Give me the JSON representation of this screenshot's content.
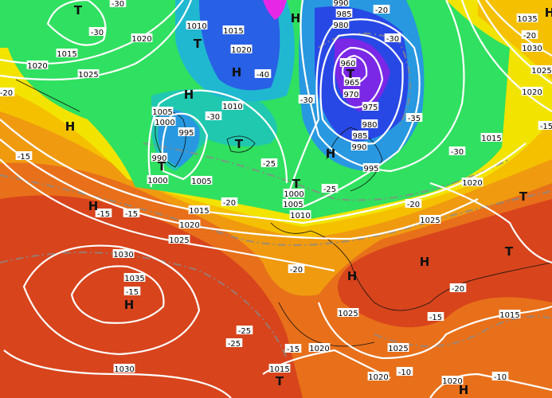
{
  "map": {
    "colors": {
      "deep_red": "#c8321e",
      "red_orange": "#e0561c",
      "orange": "#f08a10",
      "amber": "#f5b400",
      "yellow": "#f5e600",
      "green": "#2ee05a",
      "teal": "#1ac8b4",
      "cyan": "#28a0e6",
      "blue": "#2848e6",
      "purple": "#7a28e6",
      "magenta": "#e628e6",
      "isobar": "#ffffff",
      "isotherm": "#888888"
    },
    "pressure_labels": [
      "1020",
      "1015",
      "1020",
      "1025",
      "1010",
      "1015",
      "1020",
      "990",
      "985",
      "980",
      "960",
      "965",
      "970",
      "975",
      "980",
      "985",
      "990",
      "995",
      "1005",
      "1000",
      "995",
      "990",
      "1000",
      "1005",
      "1010",
      "1015",
      "1020",
      "1025",
      "1030",
      "1035",
      "1030",
      "1000",
      "1005",
      "1010",
      "1015",
      "1020",
      "1025",
      "1025",
      "1025",
      "1020",
      "1015",
      "1020",
      "1020",
      "1015",
      "1035",
      "1030",
      "1025",
      "1020"
    ],
    "temperature_labels": [
      "-30",
      "-30",
      "-20",
      "-15",
      "-15",
      "-20",
      "-25",
      "-30",
      "-40",
      "-30",
      "-35",
      "-30",
      "-20",
      "-30",
      "-25",
      "-20",
      "-20",
      "-15",
      "-20",
      "-25",
      "-25",
      "-15",
      "-15",
      "-20",
      "-10",
      "-10",
      "-15",
      "-15"
    ],
    "pressure_systems": [
      "T",
      "H",
      "H",
      "T",
      "H",
      "H",
      "T",
      "H",
      "T",
      "T",
      "H",
      "T",
      "H",
      "T",
      "H",
      "H",
      "T",
      "H",
      "T",
      "H"
    ]
  }
}
